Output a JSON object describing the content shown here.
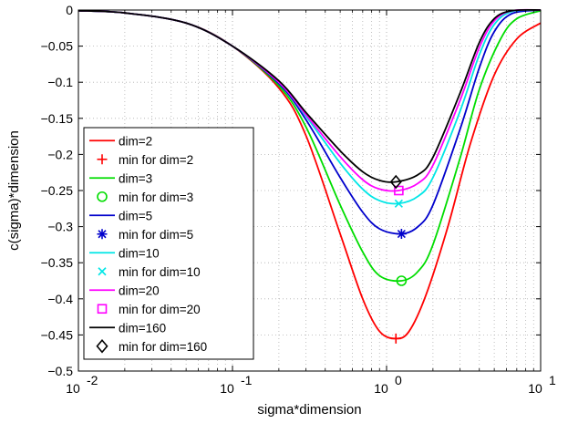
{
  "chart_data": {
    "type": "line",
    "title": "",
    "xlabel": "sigma*dimension",
    "ylabel": "c(sigma)*dimension",
    "xscale": "log",
    "xlim": [
      0.01,
      10
    ],
    "ylim": [
      -0.5,
      0
    ],
    "grid": true,
    "legend_position": "lower-left",
    "x_ticks": [
      {
        "value": 0.01,
        "base": "10",
        "exp": "-2"
      },
      {
        "value": 0.1,
        "base": "10",
        "exp": "-1"
      },
      {
        "value": 1,
        "base": "10",
        "exp": "0"
      },
      {
        "value": 10,
        "base": "10",
        "exp": "1"
      }
    ],
    "y_ticks": [
      {
        "value": 0,
        "label": "0"
      },
      {
        "value": -0.05,
        "label": "−0.05"
      },
      {
        "value": -0.1,
        "label": "−0.1"
      },
      {
        "value": -0.15,
        "label": "−0.15"
      },
      {
        "value": -0.2,
        "label": "−0.2"
      },
      {
        "value": -0.25,
        "label": "−0.25"
      },
      {
        "value": -0.3,
        "label": "−0.3"
      },
      {
        "value": -0.35,
        "label": "−0.35"
      },
      {
        "value": -0.4,
        "label": "−0.4"
      },
      {
        "value": -0.45,
        "label": "−0.45"
      },
      {
        "value": -0.5,
        "label": "−0.5"
      }
    ],
    "series": [
      {
        "name": "dim=2",
        "color": "#ff0000",
        "marker": "plus",
        "marker_label": "min for dim=2",
        "points": [
          [
            0.01,
            -0.001
          ],
          [
            0.02,
            -0.004
          ],
          [
            0.05,
            -0.018
          ],
          [
            0.1,
            -0.05
          ],
          [
            0.2,
            -0.108
          ],
          [
            0.3,
            -0.174
          ],
          [
            0.5,
            -0.31
          ],
          [
            0.7,
            -0.4
          ],
          [
            0.9,
            -0.445
          ],
          [
            1.15,
            -0.455
          ],
          [
            1.4,
            -0.445
          ],
          [
            1.8,
            -0.395
          ],
          [
            2.5,
            -0.3
          ],
          [
            3.5,
            -0.185
          ],
          [
            5,
            -0.09
          ],
          [
            7,
            -0.04
          ],
          [
            10,
            -0.018
          ]
        ],
        "min": [
          1.15,
          -0.455
        ]
      },
      {
        "name": "dim=3",
        "color": "#00dd00",
        "marker": "circle",
        "marker_label": "min for dim=3",
        "points": [
          [
            0.01,
            -0.001
          ],
          [
            0.02,
            -0.004
          ],
          [
            0.05,
            -0.018
          ],
          [
            0.1,
            -0.05
          ],
          [
            0.2,
            -0.105
          ],
          [
            0.3,
            -0.162
          ],
          [
            0.5,
            -0.27
          ],
          [
            0.7,
            -0.335
          ],
          [
            0.9,
            -0.368
          ],
          [
            1.25,
            -0.375
          ],
          [
            1.6,
            -0.362
          ],
          [
            2,
            -0.325
          ],
          [
            3,
            -0.205
          ],
          [
            4,
            -0.11
          ],
          [
            5.5,
            -0.04
          ],
          [
            7,
            -0.012
          ],
          [
            10,
            -0.001
          ]
        ],
        "min": [
          1.25,
          -0.375
        ]
      },
      {
        "name": "dim=5",
        "color": "#0000cc",
        "marker": "asterisk",
        "marker_label": "min for dim=5",
        "points": [
          [
            0.01,
            -0.001
          ],
          [
            0.02,
            -0.004
          ],
          [
            0.05,
            -0.018
          ],
          [
            0.1,
            -0.05
          ],
          [
            0.2,
            -0.102
          ],
          [
            0.3,
            -0.152
          ],
          [
            0.5,
            -0.232
          ],
          [
            0.7,
            -0.28
          ],
          [
            0.9,
            -0.303
          ],
          [
            1.25,
            -0.31
          ],
          [
            1.6,
            -0.3
          ],
          [
            2,
            -0.27
          ],
          [
            3,
            -0.165
          ],
          [
            4,
            -0.08
          ],
          [
            5,
            -0.03
          ],
          [
            6.5,
            -0.005
          ],
          [
            10,
            0
          ]
        ],
        "min": [
          1.25,
          -0.31
        ]
      },
      {
        "name": "dim=10",
        "color": "#00e6e6",
        "marker": "cross",
        "marker_label": "min for dim=10",
        "points": [
          [
            0.01,
            -0.001
          ],
          [
            0.02,
            -0.004
          ],
          [
            0.05,
            -0.018
          ],
          [
            0.1,
            -0.05
          ],
          [
            0.2,
            -0.1
          ],
          [
            0.3,
            -0.147
          ],
          [
            0.5,
            -0.212
          ],
          [
            0.7,
            -0.248
          ],
          [
            0.9,
            -0.264
          ],
          [
            1.2,
            -0.268
          ],
          [
            1.6,
            -0.258
          ],
          [
            2,
            -0.232
          ],
          [
            3,
            -0.14
          ],
          [
            4,
            -0.062
          ],
          [
            5,
            -0.02
          ],
          [
            6.5,
            -0.002
          ],
          [
            10,
            0
          ]
        ],
        "min": [
          1.2,
          -0.268
        ]
      },
      {
        "name": "dim=20",
        "color": "#ff00ff",
        "marker": "square",
        "marker_label": "min for dim=20",
        "points": [
          [
            0.01,
            -0.001
          ],
          [
            0.02,
            -0.004
          ],
          [
            0.05,
            -0.018
          ],
          [
            0.1,
            -0.05
          ],
          [
            0.2,
            -0.1
          ],
          [
            0.3,
            -0.145
          ],
          [
            0.5,
            -0.203
          ],
          [
            0.7,
            -0.235
          ],
          [
            0.9,
            -0.248
          ],
          [
            1.2,
            -0.25
          ],
          [
            1.6,
            -0.24
          ],
          [
            2,
            -0.215
          ],
          [
            3,
            -0.125
          ],
          [
            4,
            -0.052
          ],
          [
            5,
            -0.015
          ],
          [
            6.5,
            -0.001
          ],
          [
            10,
            0
          ]
        ],
        "min": [
          1.2,
          -0.25
        ]
      },
      {
        "name": "dim=160",
        "color": "#000000",
        "marker": "diamond",
        "marker_label": "min for dim=160",
        "points": [
          [
            0.01,
            -0.001
          ],
          [
            0.02,
            -0.004
          ],
          [
            0.05,
            -0.018
          ],
          [
            0.1,
            -0.05
          ],
          [
            0.2,
            -0.098
          ],
          [
            0.3,
            -0.142
          ],
          [
            0.5,
            -0.195
          ],
          [
            0.7,
            -0.224
          ],
          [
            0.9,
            -0.236
          ],
          [
            1.15,
            -0.238
          ],
          [
            1.6,
            -0.228
          ],
          [
            2,
            -0.204
          ],
          [
            3,
            -0.115
          ],
          [
            4,
            -0.045
          ],
          [
            5,
            -0.012
          ],
          [
            6.5,
            -0.001
          ],
          [
            10,
            0
          ]
        ],
        "min": [
          1.15,
          -0.238
        ]
      }
    ]
  }
}
